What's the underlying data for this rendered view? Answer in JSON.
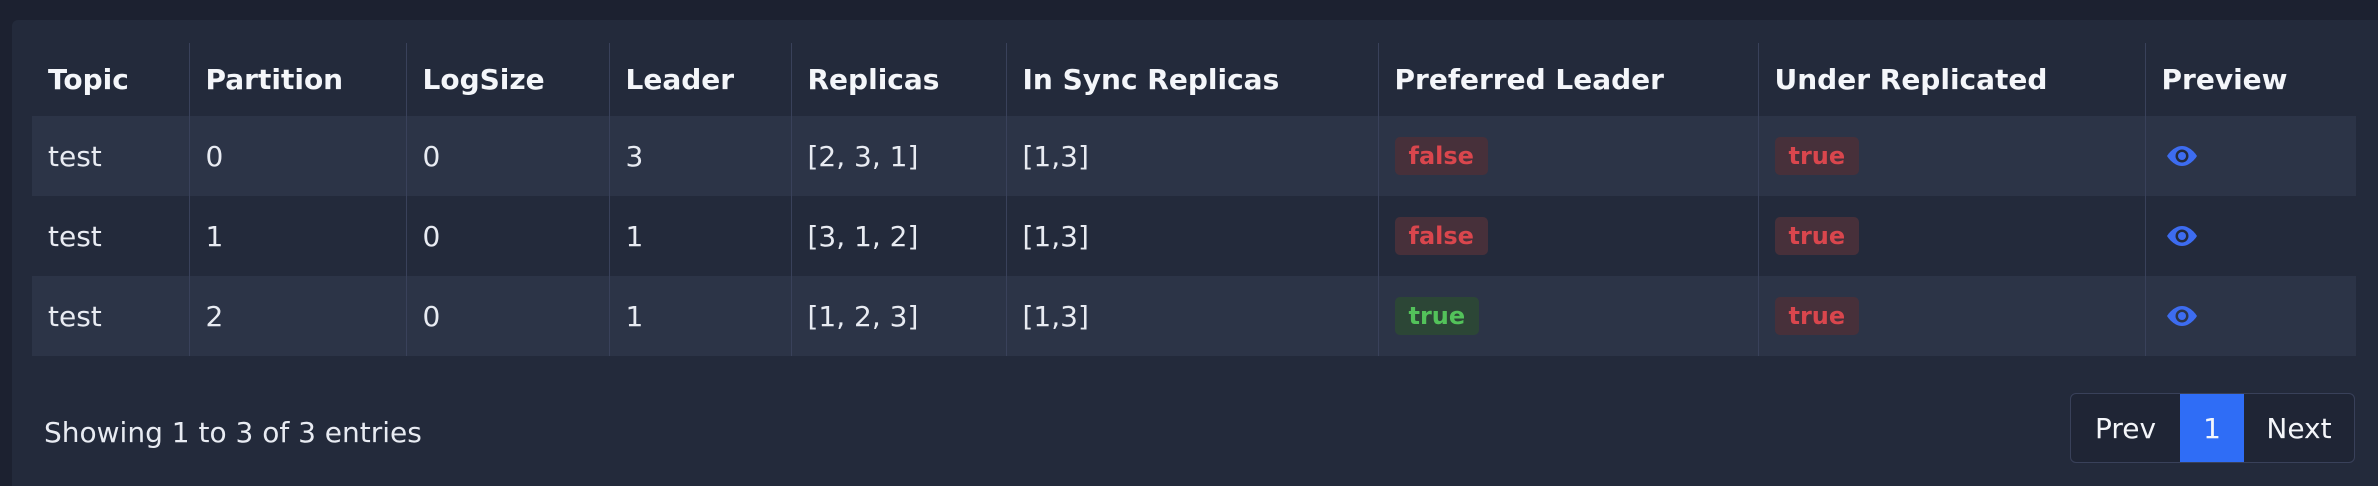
{
  "table": {
    "columns": [
      "Topic",
      "Partition",
      "LogSize",
      "Leader",
      "Replicas",
      "In Sync Replicas",
      "Preferred Leader",
      "Under Replicated",
      "Preview"
    ],
    "rows": [
      {
        "topic": "test",
        "partition": "0",
        "logsize": "0",
        "leader": "3",
        "replicas": "[2, 3, 1]",
        "isr": "[1,3]",
        "preferred_leader": "false",
        "under_replicated": "true",
        "preview_icon": "eye-icon"
      },
      {
        "topic": "test",
        "partition": "1",
        "logsize": "0",
        "leader": "1",
        "replicas": "[3, 1, 2]",
        "isr": "[1,3]",
        "preferred_leader": "false",
        "under_replicated": "true",
        "preview_icon": "eye-icon"
      },
      {
        "topic": "test",
        "partition": "2",
        "logsize": "0",
        "leader": "1",
        "replicas": "[1, 2, 3]",
        "isr": "[1,3]",
        "preferred_leader": "true",
        "under_replicated": "true",
        "preview_icon": "eye-icon"
      }
    ]
  },
  "footer": {
    "summary": "Showing 1 to 3 of 3 entries"
  },
  "pagination": {
    "prev_label": "Prev",
    "current_page": "1",
    "next_label": "Next"
  },
  "colors": {
    "accent": "#2f6df6",
    "badge_red": "#d9464d",
    "badge_green": "#53c25a",
    "eye_icon": "#3d6cf0"
  }
}
